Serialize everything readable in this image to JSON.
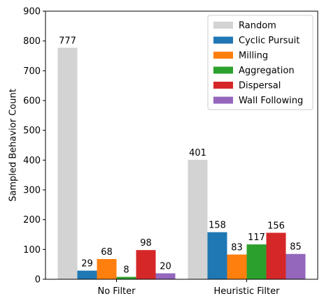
{
  "chart_data": {
    "type": "bar",
    "categories": [
      "No Filter",
      "Heuristic Filter"
    ],
    "series": [
      {
        "name": "Random",
        "values": [
          777,
          401
        ],
        "color": "#d3d3d3"
      },
      {
        "name": "Cyclic Pursuit",
        "values": [
          29,
          158
        ],
        "color": "#1f77b4"
      },
      {
        "name": "Milling",
        "values": [
          68,
          83
        ],
        "color": "#ff7f0e"
      },
      {
        "name": "Aggregation",
        "values": [
          8,
          117
        ],
        "color": "#2ca02c"
      },
      {
        "name": "Dispersal",
        "values": [
          98,
          156
        ],
        "color": "#d62728"
      },
      {
        "name": "Wall Following",
        "values": [
          20,
          85
        ],
        "color": "#9467bd"
      }
    ],
    "title": "",
    "xlabel": "",
    "ylabel": "Sampled Behavior Count",
    "ylim": [
      0,
      900
    ],
    "yticks": [
      0,
      100,
      200,
      300,
      400,
      500,
      600,
      700,
      800,
      900
    ],
    "grid": false,
    "legend_position": "top-right",
    "data_labels": true
  }
}
